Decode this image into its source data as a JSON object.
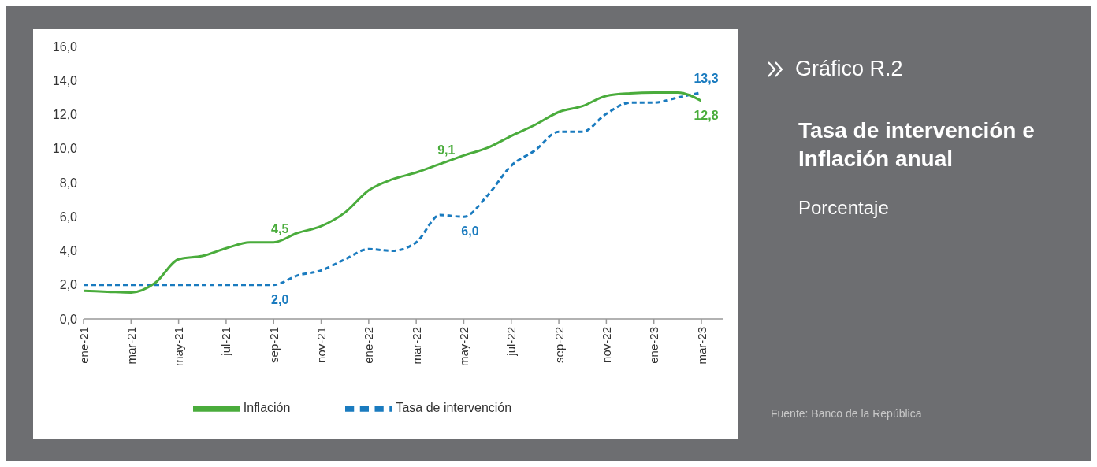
{
  "chart_data": {
    "type": "line",
    "title": "Tasa de intervención e Inflación anual",
    "subtitle": "Porcentaje",
    "annotations": [
      "Gráfico R.2",
      "Fuente: Banco de la República"
    ],
    "categories": [
      "ene-21",
      null,
      "mar-21",
      null,
      "may-21",
      null,
      "jul-21",
      null,
      "sep-21",
      null,
      "nov-21",
      null,
      "ene-22",
      null,
      "mar-22",
      null,
      "may-22",
      null,
      "jul-22",
      null,
      "sep-22",
      null,
      "nov-22",
      null,
      "ene-23",
      null,
      "mar-23"
    ],
    "series": [
      {
        "name": "Tasa de intervención",
        "color": "#1a7bbf",
        "line_style": "dashed",
        "values": [
          2.0,
          2.0,
          2.0,
          2.0,
          2.0,
          2.0,
          2.0,
          2.0,
          2.0,
          2.55,
          2.85,
          3.5,
          4.1,
          4.0,
          4.5,
          6.1,
          6.0,
          7.25,
          9.0,
          9.9,
          11.0,
          11.0,
          12.05,
          12.7,
          12.7,
          13.0,
          13.3
        ],
        "value_labels": [
          null,
          null,
          null,
          null,
          null,
          null,
          null,
          null,
          "2,0",
          null,
          null,
          null,
          null,
          null,
          null,
          null,
          "6,0",
          null,
          null,
          null,
          null,
          null,
          null,
          null,
          null,
          null,
          "13,3"
        ]
      },
      {
        "name": "Inflación",
        "color": "#4aac3c",
        "line_style": "solid",
        "values": [
          1.65,
          1.6,
          1.55,
          2.1,
          3.5,
          3.7,
          4.15,
          4.5,
          4.5,
          5.05,
          5.45,
          6.25,
          7.55,
          8.2,
          8.6,
          9.1,
          9.6,
          10.05,
          10.75,
          11.4,
          12.15,
          12.5,
          13.1,
          13.25,
          13.3,
          13.3,
          12.8
        ],
        "value_labels": [
          null,
          null,
          null,
          null,
          null,
          null,
          null,
          null,
          "4,5",
          null,
          null,
          null,
          null,
          null,
          null,
          "9,1",
          null,
          null,
          null,
          null,
          null,
          null,
          null,
          null,
          null,
          null,
          "12,8"
        ]
      }
    ],
    "ylim": [
      0,
      16
    ],
    "yticks": [
      {
        "value": 0,
        "label": "0,0"
      },
      {
        "value": 2,
        "label": "2,0"
      },
      {
        "value": 4,
        "label": "4,0"
      },
      {
        "value": 6,
        "label": "6,0"
      },
      {
        "value": 8,
        "label": "8,0"
      },
      {
        "value": 10,
        "label": "10,0"
      },
      {
        "value": 12,
        "label": "12,0"
      },
      {
        "value": 14,
        "label": "14,0"
      },
      {
        "value": 16,
        "label": "16,0"
      }
    ],
    "grid": false,
    "legend": "bottom",
    "marker": "none"
  }
}
